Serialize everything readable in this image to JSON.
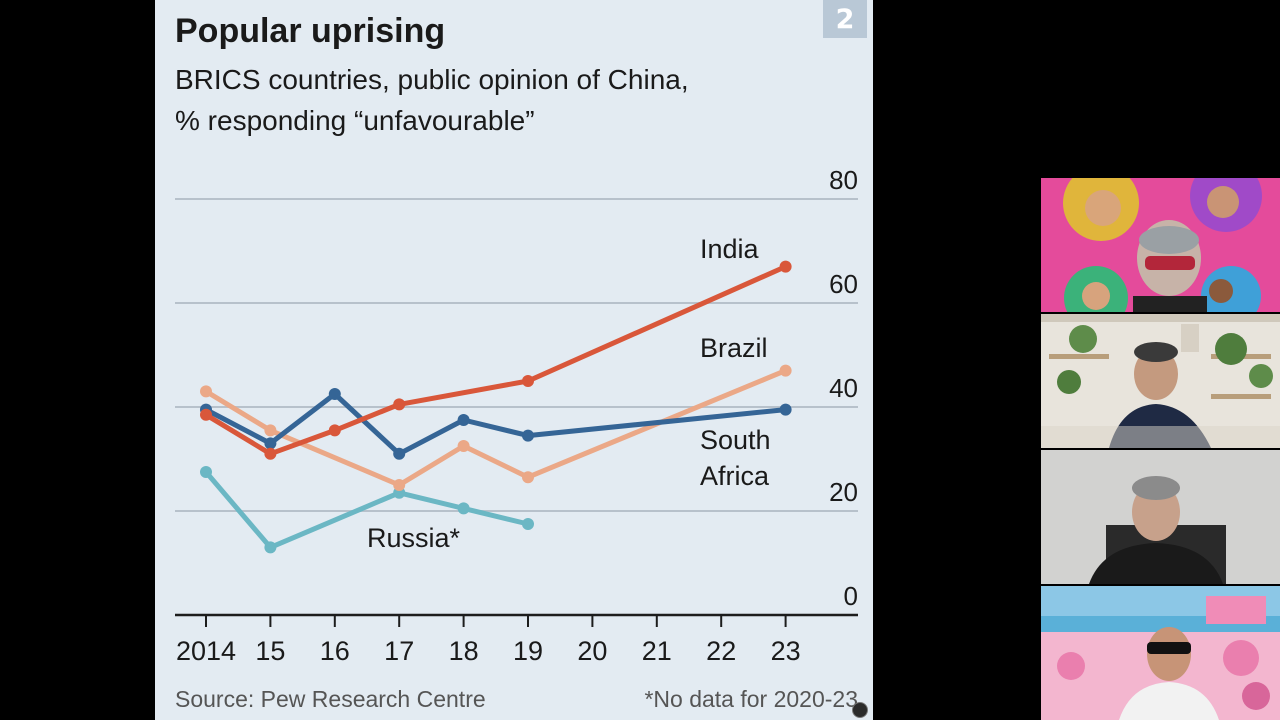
{
  "slide": {
    "page_number": "2",
    "title": "Popular uprising",
    "subtitle_line1": "BRICS countries, public opinion of China,",
    "subtitle_line2": "% responding “unfavourable”",
    "source": "Source: Pew Research Centre",
    "footnote": "*No data for 2020-23"
  },
  "chart_data": {
    "type": "line",
    "title": "Popular uprising",
    "subtitle": "BRICS countries, public opinion of China, % responding “unfavourable”",
    "x_tick_labels": [
      "2014",
      "15",
      "16",
      "17",
      "18",
      "19",
      "20",
      "21",
      "22",
      "23"
    ],
    "x": [
      2014,
      2015,
      2016,
      2017,
      2018,
      2019,
      2020,
      2021,
      2022,
      2023
    ],
    "ylim": [
      0,
      80
    ],
    "y_ticks": [
      0,
      20,
      40,
      60,
      80
    ],
    "y_axis_position": "right",
    "grid": true,
    "legend": "direct labels at line ends",
    "series": [
      {
        "name": "India",
        "color": "#d9573a",
        "label_lines": [
          "India"
        ],
        "points": [
          [
            2014,
            38.5
          ],
          [
            2015,
            31
          ],
          [
            2016,
            35.5
          ],
          [
            2017,
            40.5
          ],
          [
            2018,
            null
          ],
          [
            2019,
            45
          ],
          [
            2023,
            67
          ]
        ]
      },
      {
        "name": "Brazil",
        "color": "#eba887",
        "label_lines": [
          "Brazil"
        ],
        "points": [
          [
            2014,
            43
          ],
          [
            2015,
            35.5
          ],
          [
            2017,
            25
          ],
          [
            2018,
            32.5
          ],
          [
            2019,
            26.5
          ],
          [
            2023,
            47
          ]
        ]
      },
      {
        "name": "South Africa",
        "color": "#356596",
        "label_lines": [
          "South",
          "Africa"
        ],
        "points": [
          [
            2014,
            39.5
          ],
          [
            2015,
            33
          ],
          [
            2016,
            42.5
          ],
          [
            2017,
            31
          ],
          [
            2018,
            37.5
          ],
          [
            2019,
            34.5
          ],
          [
            2023,
            39.5
          ]
        ]
      },
      {
        "name": "Russia*",
        "color": "#6bb7c4",
        "label_lines": [
          "Russia*"
        ],
        "points": [
          [
            2014,
            27.5
          ],
          [
            2015,
            13
          ],
          [
            2017,
            23.5
          ],
          [
            2018,
            20.5
          ],
          [
            2019,
            17.5
          ]
        ]
      }
    ]
  },
  "colors": {
    "slide_background": "#e3ebf2",
    "gridline": "#b7c1cb",
    "axis": "#1d1d1d",
    "text": "#1a1a1a",
    "muted_text": "#555555",
    "badge": "#b9c8d6"
  },
  "participants": [
    {
      "name": "participant-1",
      "background": "pink poster with glitter"
    },
    {
      "name": "participant-2",
      "background": "bookshelf room"
    },
    {
      "name": "participant-3",
      "background": "plain wall"
    },
    {
      "name": "participant-4",
      "background": "pink beach scene"
    }
  ]
}
